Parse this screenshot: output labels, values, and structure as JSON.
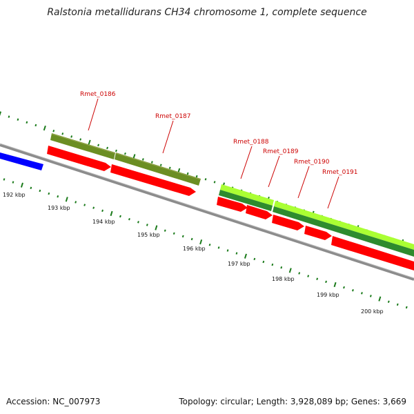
{
  "title": "Ralstonia metallidurans CH34 chromosome 1, complete sequence",
  "footer": {
    "accession": "Accession: NC_007973",
    "stats": "Topology: circular; Length: 3,928,089 bp; Genes: 3,669"
  },
  "colors": {
    "backbone": "#8c8c8c",
    "cds": "#ff0000",
    "blue_feature": "#0000ff",
    "olive_feature": "#6b8e23",
    "lime_feature": "#aaff33",
    "green_feature": "#2e8b2e",
    "ticks": "#1a7a1a",
    "label": "#cc0000"
  },
  "gene_labels": [
    "Rmet_0186",
    "Rmet_0187",
    "Rmet_0188",
    "Rmet_0189",
    "Rmet_0190",
    "Rmet_0191"
  ],
  "tick_labels": [
    "192 kbp",
    "193 kbp",
    "194 kbp",
    "195 kbp",
    "196 kbp",
    "197 kbp",
    "198 kbp",
    "199 kbp",
    "200 kbp"
  ]
}
